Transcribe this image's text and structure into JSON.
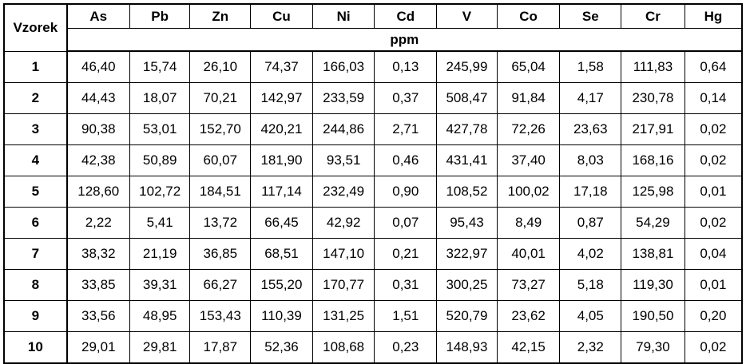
{
  "table": {
    "corner_label": "Vzorek",
    "unit_label": "ppm",
    "columns": [
      "As",
      "Pb",
      "Zn",
      "Cu",
      "Ni",
      "Cd",
      "V",
      "Co",
      "Se",
      "Cr",
      "Hg"
    ],
    "rows": [
      {
        "id": "1",
        "values": [
          "46,40",
          "15,74",
          "26,10",
          "74,37",
          "166,03",
          "0,13",
          "245,99",
          "65,04",
          "1,58",
          "111,83",
          "0,64"
        ]
      },
      {
        "id": "2",
        "values": [
          "44,43",
          "18,07",
          "70,21",
          "142,97",
          "233,59",
          "0,37",
          "508,47",
          "91,84",
          "4,17",
          "230,78",
          "0,14"
        ]
      },
      {
        "id": "3",
        "values": [
          "90,38",
          "53,01",
          "152,70",
          "420,21",
          "244,86",
          "2,71",
          "427,78",
          "72,26",
          "23,63",
          "217,91",
          "0,02"
        ]
      },
      {
        "id": "4",
        "values": [
          "42,38",
          "50,89",
          "60,07",
          "181,90",
          "93,51",
          "0,46",
          "431,41",
          "37,40",
          "8,03",
          "168,16",
          "0,02"
        ]
      },
      {
        "id": "5",
        "values": [
          "128,60",
          "102,72",
          "184,51",
          "117,14",
          "232,49",
          "0,90",
          "108,52",
          "100,02",
          "17,18",
          "125,98",
          "0,01"
        ]
      },
      {
        "id": "6",
        "values": [
          "2,22",
          "5,41",
          "13,72",
          "66,45",
          "42,92",
          "0,07",
          "95,43",
          "8,49",
          "0,87",
          "54,29",
          "0,02"
        ]
      },
      {
        "id": "7",
        "values": [
          "38,32",
          "21,19",
          "36,85",
          "68,51",
          "147,10",
          "0,21",
          "322,97",
          "40,01",
          "4,02",
          "138,81",
          "0,04"
        ]
      },
      {
        "id": "8",
        "values": [
          "33,85",
          "39,31",
          "66,27",
          "155,20",
          "170,77",
          "0,31",
          "300,25",
          "73,27",
          "5,18",
          "119,30",
          "0,01"
        ]
      },
      {
        "id": "9",
        "values": [
          "33,56",
          "48,95",
          "153,43",
          "110,39",
          "131,25",
          "1,51",
          "520,79",
          "23,62",
          "4,05",
          "190,50",
          "0,20"
        ]
      },
      {
        "id": "10",
        "values": [
          "29,01",
          "29,81",
          "17,87",
          "52,36",
          "108,68",
          "0,23",
          "148,93",
          "42,15",
          "2,32",
          "79,30",
          "0,02"
        ]
      }
    ]
  }
}
